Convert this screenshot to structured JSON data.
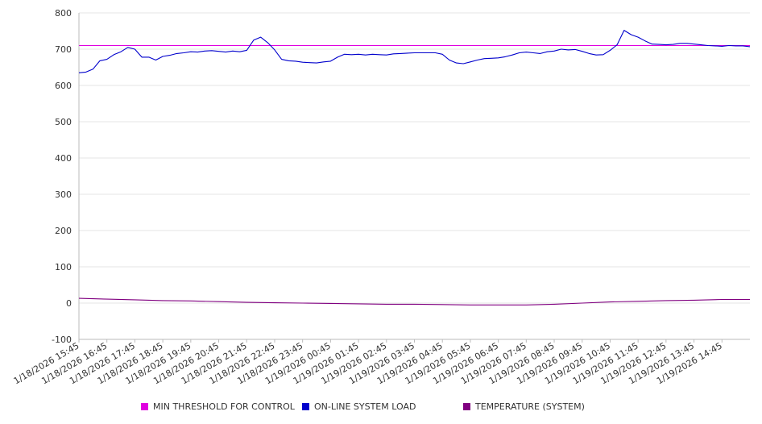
{
  "chart_data": {
    "type": "line",
    "title": "",
    "xlabel": "",
    "ylabel": "",
    "ylim": [
      -100,
      800
    ],
    "y_ticks": [
      -100,
      0,
      100,
      200,
      300,
      400,
      500,
      600,
      700,
      800
    ],
    "grid": true,
    "legend_position": "bottom",
    "x_tick_labels": [
      "1/18/2026 15:45",
      "1/18/2026 16:45",
      "1/18/2026 17:45",
      "1/18/2026 18:45",
      "1/18/2026 19:45",
      "1/18/2026 20:45",
      "1/18/2026 21:45",
      "1/18/2026 22:45",
      "1/18/2026 23:45",
      "1/19/2026 00:45",
      "1/19/2026 01:45",
      "1/19/2026 02:45",
      "1/19/2026 03:45",
      "1/19/2026 04:45",
      "1/19/2026 05:45",
      "1/19/2026 06:45",
      "1/19/2026 07:45",
      "1/19/2026 08:45",
      "1/19/2026 09:45",
      "1/19/2026 10:45",
      "1/19/2026 11:45",
      "1/19/2026 12:45",
      "1/19/2026 13:45",
      "1/19/2026 14:45"
    ],
    "series": [
      {
        "name": "MIN THRESHOLD FOR CONTROL",
        "color": "#e000e0",
        "points": [
          [
            "1/18/2026 15:45",
            710
          ],
          [
            "1/19/2026 15:45",
            710
          ]
        ]
      },
      {
        "name": "ON-LINE SYSTEM LOAD",
        "color": "#0000cc",
        "points": [
          [
            "1/18/2026 15:45",
            635
          ],
          [
            "1/18/2026 16:00",
            637
          ],
          [
            "1/18/2026 16:15",
            645
          ],
          [
            "1/18/2026 16:30",
            668
          ],
          [
            "1/18/2026 16:45",
            672
          ],
          [
            "1/18/2026 17:00",
            685
          ],
          [
            "1/18/2026 17:15",
            693
          ],
          [
            "1/18/2026 17:30",
            705
          ],
          [
            "1/18/2026 17:45",
            700
          ],
          [
            "1/18/2026 18:00",
            678
          ],
          [
            "1/18/2026 18:15",
            678
          ],
          [
            "1/18/2026 18:30",
            670
          ],
          [
            "1/18/2026 18:45",
            680
          ],
          [
            "1/18/2026 19:00",
            683
          ],
          [
            "1/18/2026 19:15",
            688
          ],
          [
            "1/18/2026 19:30",
            690
          ],
          [
            "1/18/2026 19:45",
            693
          ],
          [
            "1/18/2026 20:00",
            692
          ],
          [
            "1/18/2026 20:15",
            695
          ],
          [
            "1/18/2026 20:30",
            696
          ],
          [
            "1/18/2026 20:45",
            694
          ],
          [
            "1/18/2026 21:00",
            692
          ],
          [
            "1/18/2026 21:15",
            695
          ],
          [
            "1/18/2026 21:30",
            693
          ],
          [
            "1/18/2026 21:45",
            697
          ],
          [
            "1/18/2026 22:00",
            725
          ],
          [
            "1/18/2026 22:15",
            733
          ],
          [
            "1/18/2026 22:30",
            718
          ],
          [
            "1/18/2026 22:45",
            698
          ],
          [
            "1/18/2026 23:00",
            672
          ],
          [
            "1/18/2026 23:15",
            668
          ],
          [
            "1/18/2026 23:30",
            667
          ],
          [
            "1/18/2026 23:45",
            664
          ],
          [
            "1/19/2026 00:00",
            663
          ],
          [
            "1/19/2026 00:15",
            662
          ],
          [
            "1/19/2026 00:30",
            665
          ],
          [
            "1/19/2026 00:45",
            667
          ],
          [
            "1/19/2026 01:00",
            678
          ],
          [
            "1/19/2026 01:15",
            686
          ],
          [
            "1/19/2026 01:30",
            685
          ],
          [
            "1/19/2026 01:45",
            686
          ],
          [
            "1/19/2026 02:00",
            684
          ],
          [
            "1/19/2026 02:15",
            686
          ],
          [
            "1/19/2026 02:30",
            685
          ],
          [
            "1/19/2026 02:45",
            684
          ],
          [
            "1/19/2026 03:00",
            687
          ],
          [
            "1/19/2026 03:15",
            688
          ],
          [
            "1/19/2026 03:30",
            689
          ],
          [
            "1/19/2026 03:45",
            690
          ],
          [
            "1/19/2026 04:00",
            690
          ],
          [
            "1/19/2026 04:15",
            690
          ],
          [
            "1/19/2026 04:30",
            690
          ],
          [
            "1/19/2026 04:45",
            686
          ],
          [
            "1/19/2026 05:00",
            670
          ],
          [
            "1/19/2026 05:15",
            662
          ],
          [
            "1/19/2026 05:30",
            660
          ],
          [
            "1/19/2026 05:45",
            665
          ],
          [
            "1/19/2026 06:00",
            670
          ],
          [
            "1/19/2026 06:15",
            674
          ],
          [
            "1/19/2026 06:30",
            675
          ],
          [
            "1/19/2026 06:45",
            676
          ],
          [
            "1/19/2026 07:00",
            679
          ],
          [
            "1/19/2026 07:15",
            684
          ],
          [
            "1/19/2026 07:30",
            690
          ],
          [
            "1/19/2026 07:45",
            692
          ],
          [
            "1/19/2026 08:00",
            690
          ],
          [
            "1/19/2026 08:15",
            688
          ],
          [
            "1/19/2026 08:30",
            693
          ],
          [
            "1/19/2026 08:45",
            695
          ],
          [
            "1/19/2026 09:00",
            700
          ],
          [
            "1/19/2026 09:15",
            698
          ],
          [
            "1/19/2026 09:30",
            699
          ],
          [
            "1/19/2026 09:45",
            694
          ],
          [
            "1/19/2026 10:00",
            688
          ],
          [
            "1/19/2026 10:15",
            684
          ],
          [
            "1/19/2026 10:30",
            685
          ],
          [
            "1/19/2026 10:45",
            697
          ],
          [
            "1/19/2026 11:00",
            712
          ],
          [
            "1/19/2026 11:15",
            752
          ],
          [
            "1/19/2026 11:30",
            740
          ],
          [
            "1/19/2026 11:45",
            733
          ],
          [
            "1/19/2026 12:00",
            723
          ],
          [
            "1/19/2026 12:15",
            714
          ],
          [
            "1/19/2026 12:30",
            713
          ],
          [
            "1/19/2026 12:45",
            712
          ],
          [
            "1/19/2026 13:00",
            713
          ],
          [
            "1/19/2026 13:15",
            716
          ],
          [
            "1/19/2026 13:30",
            716
          ],
          [
            "1/19/2026 13:45",
            714
          ],
          [
            "1/19/2026 14:00",
            712
          ],
          [
            "1/19/2026 14:15",
            710
          ],
          [
            "1/19/2026 14:30",
            709
          ],
          [
            "1/19/2026 14:45",
            708
          ],
          [
            "1/19/2026 15:00",
            710
          ],
          [
            "1/19/2026 15:15",
            709
          ],
          [
            "1/19/2026 15:30",
            709
          ],
          [
            "1/19/2026 15:45",
            707
          ]
        ]
      },
      {
        "name": "TEMPERATURE (SYSTEM)",
        "color": "#800080",
        "points": [
          [
            "1/18/2026 15:45",
            13
          ],
          [
            "1/18/2026 16:45",
            11
          ],
          [
            "1/18/2026 17:45",
            9
          ],
          [
            "1/18/2026 18:45",
            7
          ],
          [
            "1/18/2026 19:45",
            6
          ],
          [
            "1/18/2026 20:45",
            4
          ],
          [
            "1/18/2026 21:45",
            2
          ],
          [
            "1/18/2026 22:45",
            1
          ],
          [
            "1/18/2026 23:45",
            0
          ],
          [
            "1/19/2026 00:45",
            -1
          ],
          [
            "1/19/2026 01:45",
            -2
          ],
          [
            "1/19/2026 02:45",
            -3
          ],
          [
            "1/19/2026 03:45",
            -3
          ],
          [
            "1/19/2026 04:45",
            -4
          ],
          [
            "1/19/2026 05:45",
            -5
          ],
          [
            "1/19/2026 06:45",
            -5
          ],
          [
            "1/19/2026 07:45",
            -5
          ],
          [
            "1/19/2026 08:45",
            -3
          ],
          [
            "1/19/2026 09:45",
            0
          ],
          [
            "1/19/2026 10:45",
            3
          ],
          [
            "1/19/2026 11:45",
            5
          ],
          [
            "1/19/2026 12:45",
            7
          ],
          [
            "1/19/2026 13:45",
            8
          ],
          [
            "1/19/2026 14:45",
            10
          ],
          [
            "1/19/2026 15:45",
            10
          ]
        ]
      }
    ]
  }
}
